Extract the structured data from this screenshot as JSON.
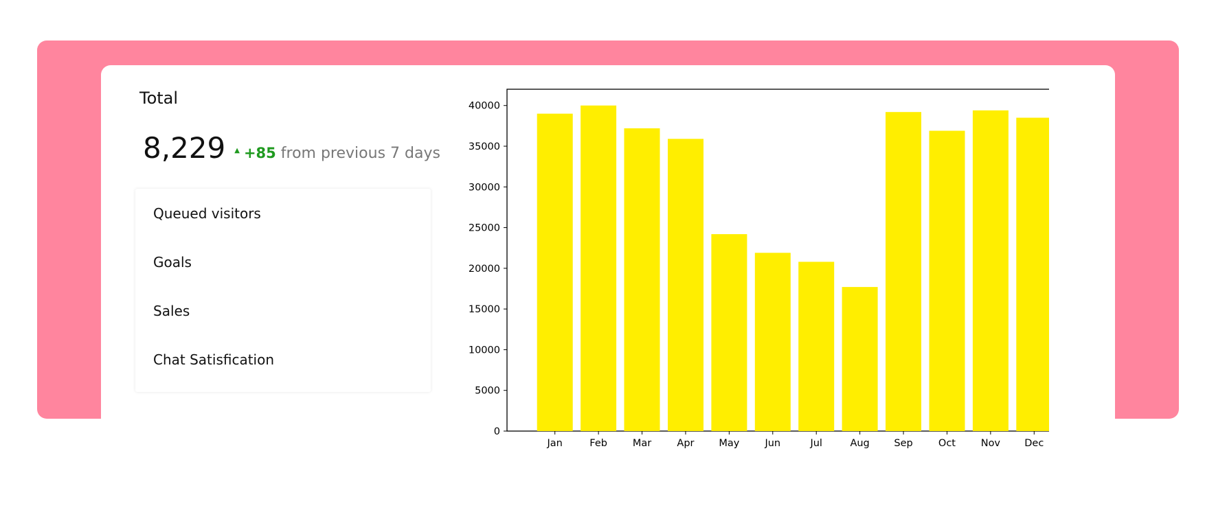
{
  "panel": {
    "title": "Total",
    "value": "8,229",
    "trend_icon": "triangle-up-icon",
    "trend_glyph": "▲",
    "delta": "+85",
    "delta_text": "from previous 7 days"
  },
  "list": {
    "items": [
      {
        "label": "Queued visitors"
      },
      {
        "label": "Goals"
      },
      {
        "label": "Sales"
      },
      {
        "label": "Chat Satisfication"
      }
    ]
  },
  "colors": {
    "background_band": "#ff859e",
    "bar": "#ffee00",
    "positive": "#1f9a1f"
  },
  "chart_data": {
    "type": "bar",
    "categories": [
      "Jan",
      "Feb",
      "Mar",
      "Apr",
      "May",
      "Jun",
      "Jul",
      "Aug",
      "Sep",
      "Oct",
      "Nov",
      "Dec"
    ],
    "values": [
      39000,
      40000,
      37200,
      35900,
      24200,
      21900,
      20800,
      17700,
      39200,
      36900,
      39400,
      38500
    ],
    "yticks": [
      "0",
      "5000",
      "10000",
      "15000",
      "20000",
      "25000",
      "30000",
      "35000",
      "40000"
    ],
    "ylim": [
      0,
      42000
    ],
    "title": "",
    "xlabel": "",
    "ylabel": "",
    "grid": false,
    "bar_color": "#ffee00"
  }
}
